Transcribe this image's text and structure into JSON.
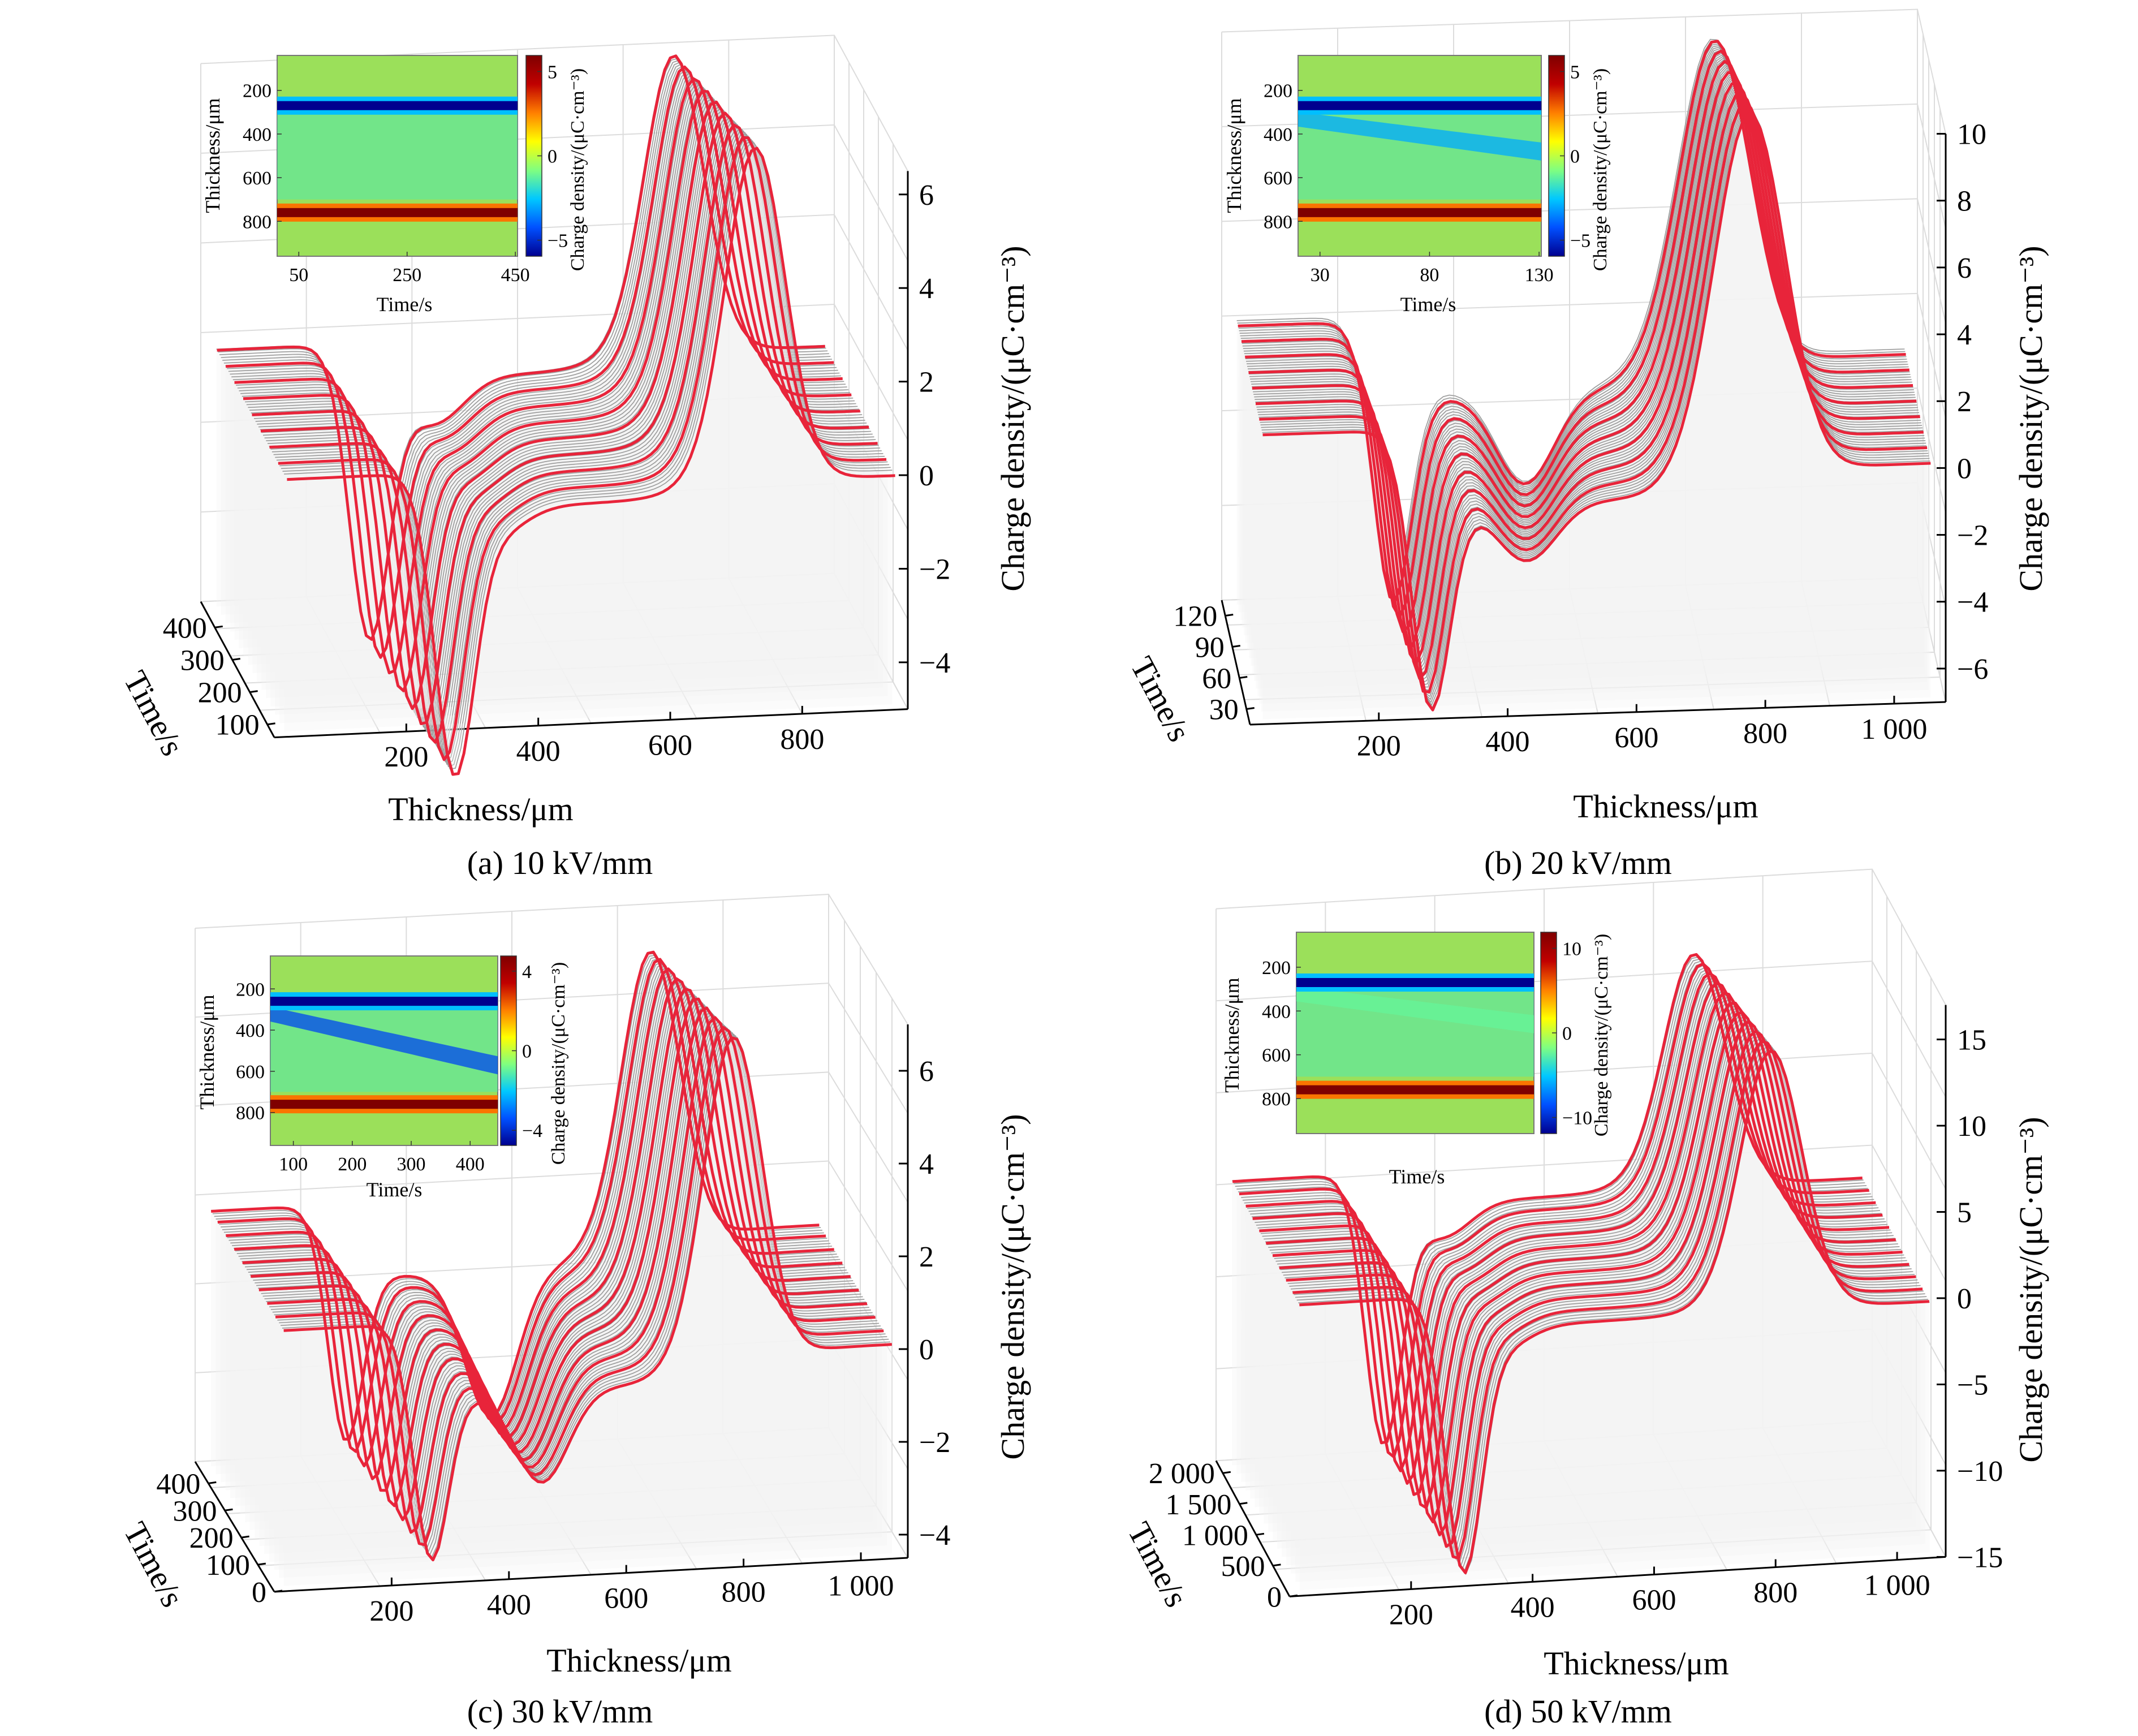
{
  "figure": {
    "colors": {
      "ridge_fill": "#f4f4f4",
      "ridge_line": "#9a9a9a",
      "highlight_curve": "#e8243a",
      "grid": "#dcdcdc",
      "axis": "#000000",
      "heatmap_background": "#9be05a"
    },
    "colorbar_stops": [
      "#00008f",
      "#0050ff",
      "#00c8ff",
      "#80ff80",
      "#ffff00",
      "#ff7f00",
      "#c00000",
      "#7f0000"
    ]
  },
  "chart_data": [
    {
      "type": "surface",
      "panel_label": "(a) 10 kV/mm",
      "xlabel": "Thickness/μm",
      "ylabel": "Time/s",
      "zlabel": "Charge density/(μC·cm⁻³)",
      "x_ticks": [
        "200",
        "400",
        "600",
        "800"
      ],
      "x_range": [
        0,
        960
      ],
      "y_ticks": [
        "100",
        "200",
        "300",
        "400"
      ],
      "y_range": [
        60,
        480
      ],
      "z_ticks": [
        "−4",
        "−2",
        "0",
        "2",
        "4",
        "6"
      ],
      "z_range": [
        -5,
        6.5
      ],
      "highlight_times": [
        60,
        110,
        160,
        210,
        260,
        310,
        360,
        410,
        460
      ],
      "profile": {
        "baseline": 0.5,
        "negative_peak": {
          "position": 260,
          "value": -5.6,
          "width": 30
        },
        "negative_tail": {
          "value": -1.0
        },
        "positive_peak": {
          "position": 720,
          "value": 6.8,
          "width": 45
        },
        "middle_level": -0.3,
        "end_level": 0.0
      },
      "inset": {
        "xlabel": "Time/s",
        "ylabel": "Thickness/μm",
        "colorbar_label": "Charge density/(μC·cm⁻³)",
        "x_ticks": [
          "50",
          "250",
          "450"
        ],
        "y_ticks": [
          "200",
          "400",
          "600",
          "800"
        ],
        "colorbar_ticks": [
          "5",
          "0",
          "−5"
        ],
        "bands": [
          {
            "thickness": 270,
            "value": -5
          },
          {
            "thickness": 760,
            "value": 5
          }
        ],
        "drifting_band": null
      }
    },
    {
      "type": "surface",
      "panel_label": "(b) 20 kV/mm",
      "xlabel": "Thickness/μm",
      "ylabel": "Time/s",
      "zlabel": "Charge density/(μC·cm⁻³)",
      "x_ticks": [
        "200",
        "400",
        "600",
        "800",
        "1 000"
      ],
      "x_range": [
        0,
        1080
      ],
      "y_ticks": [
        "30",
        "60",
        "90",
        "120"
      ],
      "y_range": [
        15,
        135
      ],
      "z_ticks": [
        "−6",
        "−4",
        "−2",
        "0",
        "2",
        "4",
        "6",
        "8",
        "10"
      ],
      "z_range": [
        -7,
        10
      ],
      "highlight_times": [
        20,
        35,
        50,
        65,
        80,
        95,
        110,
        125
      ],
      "profile": {
        "baseline": 1.5,
        "negative_peak": {
          "position": 270,
          "value": -6.5,
          "width": 30
        },
        "negative_tail": {
          "position": 430,
          "value": -2.8
        },
        "positive_peak": {
          "position": 770,
          "value": 10.0,
          "width": 55
        },
        "middle_level": -0.8,
        "end_level": 0.0
      },
      "inset": {
        "xlabel": "Time/s",
        "ylabel": "Thickness/μm",
        "colorbar_label": "Charge density/(μC·cm⁻³)",
        "x_ticks": [
          "30",
          "80",
          "130"
        ],
        "y_ticks": [
          "200",
          "400",
          "600",
          "800"
        ],
        "colorbar_ticks": [
          "5",
          "0",
          "−5"
        ],
        "bands": [
          {
            "thickness": 270,
            "value": -5
          },
          {
            "thickness": 760,
            "value": 5
          }
        ],
        "drifting_band": {
          "start": 330,
          "end": 470,
          "value": -2.5
        }
      }
    },
    {
      "type": "surface",
      "panel_label": "(c) 30 kV/mm",
      "xlabel": "Thickness/μm",
      "ylabel": "Time/s",
      "zlabel": "Charge density/(μC·cm⁻³)",
      "x_ticks": [
        "200",
        "400",
        "600",
        "800",
        "1 000"
      ],
      "x_range": [
        0,
        1080
      ],
      "y_ticks": [
        "0",
        "100",
        "200",
        "300",
        "400"
      ],
      "y_range": [
        0,
        480
      ],
      "z_ticks": [
        "−4",
        "−2",
        "0",
        "2",
        "4",
        "6"
      ],
      "z_range": [
        -4.5,
        7
      ],
      "highlight_times": [
        20,
        70,
        120,
        170,
        220,
        270,
        320,
        370,
        420,
        460
      ],
      "profile": {
        "baseline": 1.0,
        "negative_peak": {
          "position": 260,
          "value": -3.8,
          "width": 30
        },
        "negative_tail": {
          "position": 460,
          "value": -3.2
        },
        "positive_peak": {
          "position": 780,
          "value": 6.5,
          "width": 50
        },
        "middle_level": -0.6,
        "end_level": 0.0
      },
      "inset": {
        "xlabel": "Time/s",
        "ylabel": "Thickness/μm",
        "colorbar_label": "Charge density/(μC·cm⁻³)",
        "x_ticks": [
          "100",
          "200",
          "300",
          "400"
        ],
        "y_ticks": [
          "200",
          "400",
          "600",
          "800"
        ],
        "colorbar_ticks": [
          "4",
          "0",
          "−4"
        ],
        "bands": [
          {
            "thickness": 260,
            "value": -4
          },
          {
            "thickness": 760,
            "value": 4
          }
        ],
        "drifting_band": {
          "start": 320,
          "end": 560,
          "value": -3
        }
      }
    },
    {
      "type": "surface",
      "panel_label": "(d) 50 kV/mm",
      "xlabel": "Thickness/μm",
      "ylabel": "Time/s",
      "zlabel": "Charge density/(μC·cm⁻³)",
      "x_ticks": [
        "200",
        "400",
        "600",
        "800",
        "1 000"
      ],
      "x_range": [
        0,
        1080
      ],
      "y_ticks": [
        "0",
        "500",
        "1 000",
        "1 500",
        "2 000"
      ],
      "y_range": [
        0,
        2200
      ],
      "z_ticks": [
        "−15",
        "−10",
        "−5",
        "0",
        "5",
        "10",
        "15"
      ],
      "z_range": [
        -15,
        17
      ],
      "highlight_times": [
        100,
        300,
        500,
        700,
        900,
        1100,
        1300,
        1500,
        1700,
        1900,
        2100
      ],
      "profile": {
        "baseline": 1.5,
        "negative_peak": {
          "position": 280,
          "value": -14.0,
          "width": 30
        },
        "negative_tail": {
          "value": -2.0
        },
        "positive_peak": {
          "position": 790,
          "value": 14.0,
          "width": 50
        },
        "middle_level": -0.5,
        "end_level": -0.5
      },
      "inset": {
        "xlabel": "Time/s",
        "ylabel": "Thickness/μm",
        "colorbar_label": "Charge density/(μC·cm⁻³)",
        "x_ticks": [],
        "y_ticks": [
          "200",
          "400",
          "600",
          "800"
        ],
        "colorbar_ticks": [
          "10",
          "0",
          "−10"
        ],
        "bands": [
          {
            "thickness": 270,
            "value": -10
          },
          {
            "thickness": 760,
            "value": 10
          }
        ],
        "drifting_band": {
          "start": 320,
          "end": 450,
          "value": -2
        }
      }
    }
  ]
}
